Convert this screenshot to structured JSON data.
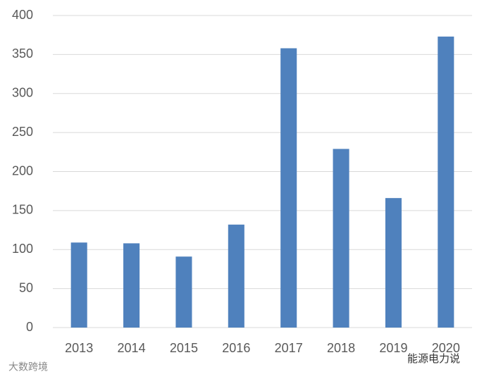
{
  "chart_data": {
    "type": "bar",
    "categories": [
      "2013",
      "2014",
      "2015",
      "2016",
      "2017",
      "2018",
      "2019",
      "2020"
    ],
    "values": [
      109,
      108,
      91,
      132,
      358,
      229,
      166,
      373
    ],
    "color": "#4f81bd",
    "ylim": [
      0,
      400
    ],
    "yticks": [
      0,
      50,
      100,
      150,
      200,
      250,
      300,
      350,
      400
    ],
    "grid": true
  },
  "watermarks": [
    "大数跨境",
    "能源电力说"
  ]
}
